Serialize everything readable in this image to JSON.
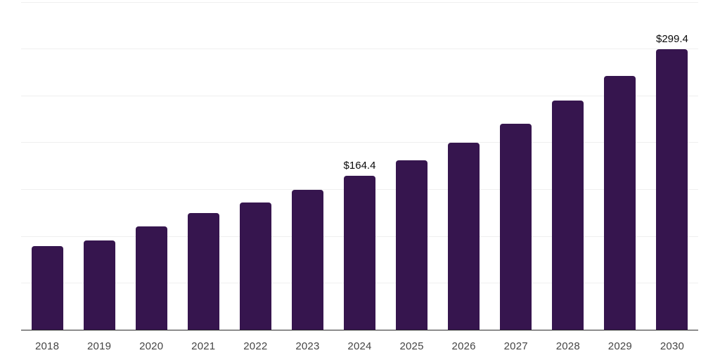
{
  "chart_data": {
    "type": "bar",
    "title": "",
    "xlabel": "",
    "ylabel": "",
    "categories": [
      "2018",
      "2019",
      "2020",
      "2021",
      "2022",
      "2023",
      "2024",
      "2025",
      "2026",
      "2027",
      "2028",
      "2029",
      "2030"
    ],
    "values": [
      89.6,
      95.6,
      110.3,
      124.6,
      135.9,
      149.5,
      164.4,
      180.6,
      199.2,
      220.0,
      244.3,
      270.6,
      299.4
    ],
    "data_labels": {
      "2024": "$164.4",
      "2030": "$299.4"
    },
    "currency_prefix": "$",
    "ylim": [
      0,
      350
    ],
    "grid_step": 50,
    "grid": "horizontal-only",
    "legend": "none"
  },
  "colors": {
    "bar": "#36154e",
    "axis": "#2b2b2b",
    "gridline": "#efefef",
    "tick_label": "#454545",
    "data_label": "#0a0a0a",
    "background": "#ffffff"
  }
}
